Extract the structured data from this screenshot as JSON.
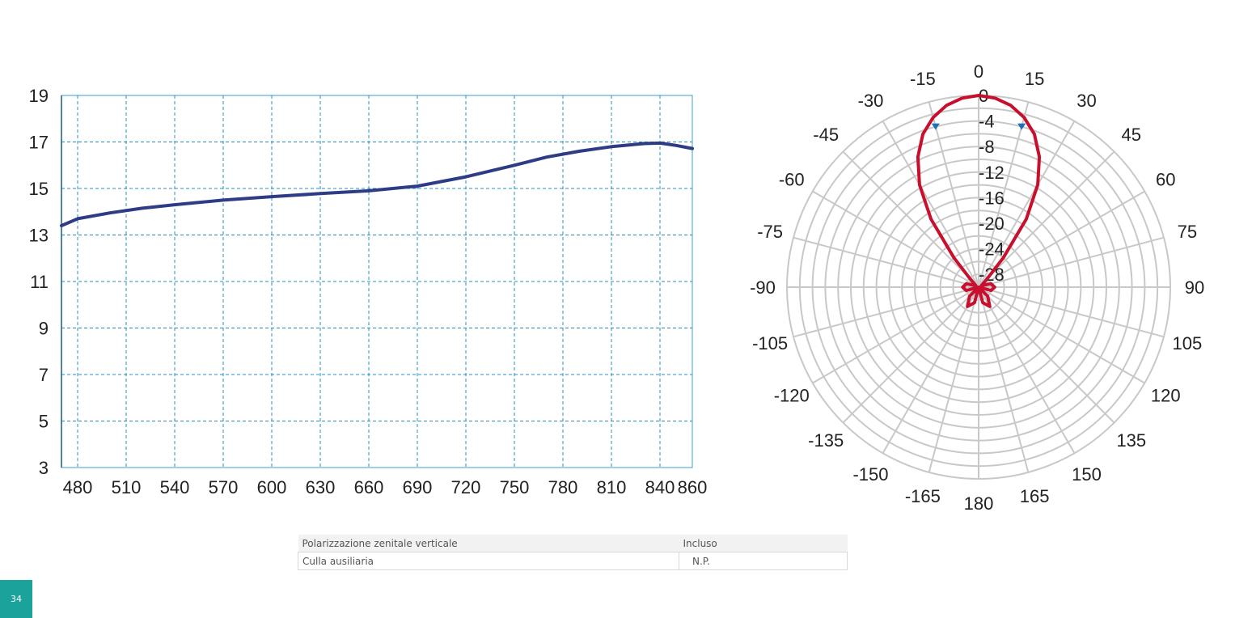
{
  "chart_data": [
    {
      "type": "line",
      "title": "",
      "xlabel": "",
      "ylabel": "",
      "xlim": [
        470,
        860
      ],
      "ylim": [
        3,
        19
      ],
      "x_ticks": [
        "480",
        "510",
        "540",
        "570",
        "600",
        "630",
        "660",
        "690",
        "720",
        "750",
        "780",
        "810",
        "840",
        "860"
      ],
      "y_ticks": [
        "19",
        "17",
        "15",
        "13",
        "11",
        "9",
        "7",
        "5",
        "3"
      ],
      "grid": true,
      "series": [
        {
          "color": "#2e3c86",
          "x": [
            470,
            480,
            500,
            520,
            540,
            570,
            600,
            630,
            660,
            690,
            720,
            750,
            770,
            790,
            810,
            830,
            840,
            850,
            860
          ],
          "y": [
            13.4,
            13.7,
            13.95,
            14.15,
            14.3,
            14.5,
            14.65,
            14.78,
            14.9,
            15.1,
            15.5,
            16.0,
            16.35,
            16.6,
            16.8,
            16.93,
            16.95,
            16.85,
            16.72
          ]
        }
      ]
    },
    {
      "type": "polar",
      "title": "",
      "angle_labels": [
        "0",
        "15",
        "30",
        "45",
        "60",
        "75",
        "90",
        "105",
        "120",
        "135",
        "150",
        "165",
        "180",
        "-165",
        "-150",
        "-135",
        "-120",
        "-105",
        "-90",
        "-75",
        "-60",
        "-45",
        "-30",
        "-15"
      ],
      "radial_labels": [
        "0",
        "-4",
        "-8",
        "-12",
        "-16",
        "-20",
        "-24",
        "-28"
      ],
      "rlim": [
        -30,
        0
      ],
      "grid": true,
      "markers_at_deg": [
        -15,
        15
      ],
      "series": [
        {
          "color": "#c8102e",
          "angle_deg": [
            -180,
            -165,
            -150,
            -135,
            -120,
            -105,
            -90,
            -75,
            -60,
            -45,
            -40,
            -35,
            -30,
            -25,
            -20,
            -15,
            -10,
            -5,
            0,
            5,
            10,
            15,
            20,
            25,
            30,
            35,
            40,
            45,
            60,
            75,
            90,
            105,
            120,
            135,
            150,
            165,
            180
          ],
          "value_db": [
            -30,
            -27.5,
            -26.5,
            -28,
            -30,
            -28,
            -27.5,
            -28,
            -29.5,
            -28,
            -24,
            -17,
            -11.5,
            -7.5,
            -4.5,
            -2.5,
            -1.1,
            -0.3,
            0,
            -0.3,
            -1.1,
            -2.5,
            -4.5,
            -7.5,
            -11.5,
            -17,
            -24,
            -28,
            -29.5,
            -28,
            -27.5,
            -28,
            -30,
            -28,
            -26.5,
            -27.5,
            -30
          ]
        }
      ]
    }
  ],
  "table": {
    "rows": [
      {
        "label": "Polarizzazione zenitale verticale",
        "value": "Incluso"
      },
      {
        "label": "Culla ausiliaria",
        "value": "N.P."
      }
    ]
  },
  "page_number": "34",
  "colors": {
    "accent": "#1aa39a",
    "gain_line": "#2e3c86",
    "grid_dashed": "#2b8cc4",
    "polar_pattern": "#c8102e",
    "polar_grid": "#c8c8c8",
    "marker": "#1f6fb5"
  }
}
